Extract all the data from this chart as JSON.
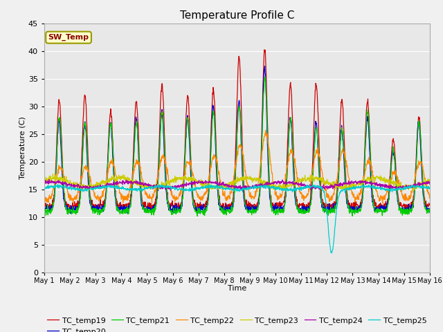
{
  "title": "Temperature Profile C",
  "xlabel": "Time",
  "ylabel": "Temperature (C)",
  "ylim": [
    0,
    45
  ],
  "xlim": [
    0,
    15
  ],
  "x_tick_labels": [
    "May 1",
    "May 2",
    "May 3",
    "May 4",
    "May 5",
    "May 6",
    "May 7",
    "May 8",
    "May 9",
    "May 10",
    "May 11",
    "May 12",
    "May 13",
    "May 14",
    "May 15",
    "May 16"
  ],
  "series_colors": {
    "TC_temp19": "#cc0000",
    "TC_temp20": "#0000cc",
    "TC_temp21": "#00cc00",
    "TC_temp22": "#ff8800",
    "TC_temp23": "#cccc00",
    "TC_temp24": "#aa00aa",
    "TC_temp25": "#00cccc"
  },
  "sw_temp_annotation": "SW_Temp",
  "annotation_facecolor": "#ffffcc",
  "annotation_edgecolor": "#999900",
  "annotation_textcolor": "#880000",
  "fig_facecolor": "#f0f0f0",
  "axes_facecolor": "#e8e8e8",
  "grid_color": "#ffffff"
}
